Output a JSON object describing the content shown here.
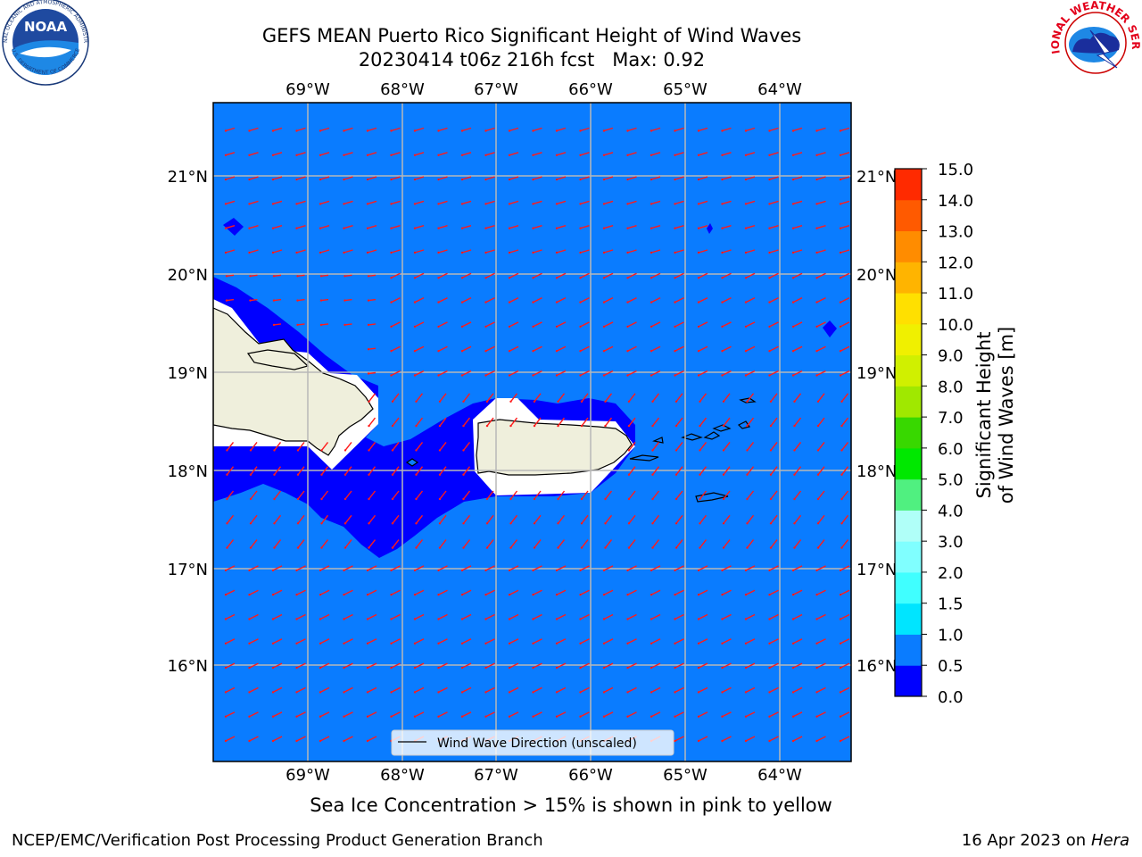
{
  "title": {
    "line1": "GEFS MEAN Puerto Rico Significant Height of Wind Waves",
    "line2": "20230414 t06z 216h fcst   Max: 0.92"
  },
  "map": {
    "lon_ticks": [
      "69°W",
      "68°W",
      "67°W",
      "66°W",
      "65°W",
      "64°W"
    ],
    "lat_ticks": [
      "21°N",
      "20°N",
      "19°N",
      "18°N",
      "17°N",
      "16°N"
    ],
    "legend_label": "Wind Wave Direction (unscaled)",
    "colors": {
      "ocean": "#0a7cff",
      "low_wave": "#0000ff",
      "land": "#efefdc",
      "arrow": "#ff1a1a",
      "grid": "#b8b8b8"
    }
  },
  "colorbar": {
    "label": "Significant Height of Wind Waves [m]",
    "ticks": [
      "0.0",
      "0.5",
      "1.0",
      "1.5",
      "2.0",
      "3.0",
      "4.0",
      "5.0",
      "6.0",
      "7.0",
      "8.0",
      "9.0",
      "10.0",
      "11.0",
      "12.0",
      "13.0",
      "14.0",
      "15.0"
    ],
    "colors": [
      "#0000ff",
      "#0a7cff",
      "#00e5ff",
      "#40ffff",
      "#80ffff",
      "#b0fff8",
      "#50f080",
      "#00e800",
      "#38d800",
      "#a0e800",
      "#d0f000",
      "#f0f000",
      "#ffe000",
      "#ffb400",
      "#ff8c00",
      "#ff5a00",
      "#ff2a00",
      "#ff0000"
    ]
  },
  "caption": "Sea Ice Concentration > 15% is shown in pink to yellow",
  "footer": {
    "left": "NCEP/EMC/Verification Post Processing Product Generation Branch",
    "right_prefix": "16 Apr 2023 on ",
    "right_host": "Hera"
  },
  "logos": {
    "noaa_text": "NOAA",
    "noaa_ring_top": "NATIONAL OCEANIC AND ATMOSPHERIC ADMINISTRATION",
    "noaa_ring_bottom": "U.S. DEPARTMENT OF COMMERCE",
    "nws_ring": "NATIONAL WEATHER SERVICE"
  }
}
